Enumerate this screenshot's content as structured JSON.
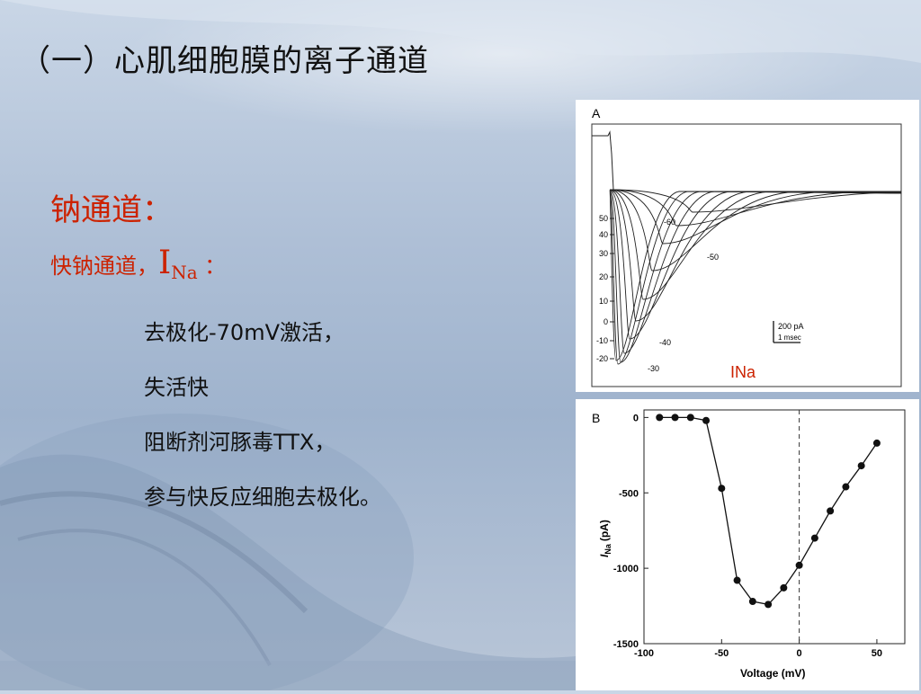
{
  "slide": {
    "title": "（一）心肌细胞膜的离子通道",
    "heading": "钠通道：",
    "subheading_prefix": "快钠通道，",
    "subheading_symbol": "I",
    "subheading_sub": "Na",
    "subheading_suffix": " ：",
    "lines": [
      "去极化-70mV激活，",
      "失活快",
      "阻断剂河豚毒TTX，",
      "参与快反应细胞去极化。"
    ]
  },
  "figure_a": {
    "panel_label": "A",
    "y_ticks": [
      "50",
      "40",
      "30",
      "20",
      "10",
      "0",
      "-10",
      "-20"
    ],
    "trace_labels": [
      "-60",
      "-50",
      "-40",
      "-30"
    ],
    "scale_bar": [
      "200 pA",
      "1 msec"
    ],
    "caption": "INa",
    "caption_color": "#cc2200"
  },
  "chart_data": {
    "type": "line",
    "panel_label": "B",
    "xlabel": "Voltage (mV)",
    "ylabel_symbol": "I",
    "ylabel_sub": "Na",
    "ylabel_unit": "(pA)",
    "xlim": [
      -100,
      68
    ],
    "ylim": [
      -1500,
      50
    ],
    "xticks": [
      -100,
      -50,
      0,
      50
    ],
    "yticks": [
      0,
      -500,
      -1000,
      -1500
    ],
    "dashed_vline_x": 0,
    "series": [
      {
        "x": [
          -90,
          -80,
          -70,
          -60,
          -50,
          -40,
          -30,
          -20,
          -10,
          0,
          10,
          20,
          30,
          40,
          50
        ],
        "y": [
          0,
          0,
          0,
          -20,
          -470,
          -1080,
          -1220,
          -1240,
          -1130,
          -980,
          -800,
          -620,
          -460,
          -320,
          -170
        ]
      }
    ]
  }
}
